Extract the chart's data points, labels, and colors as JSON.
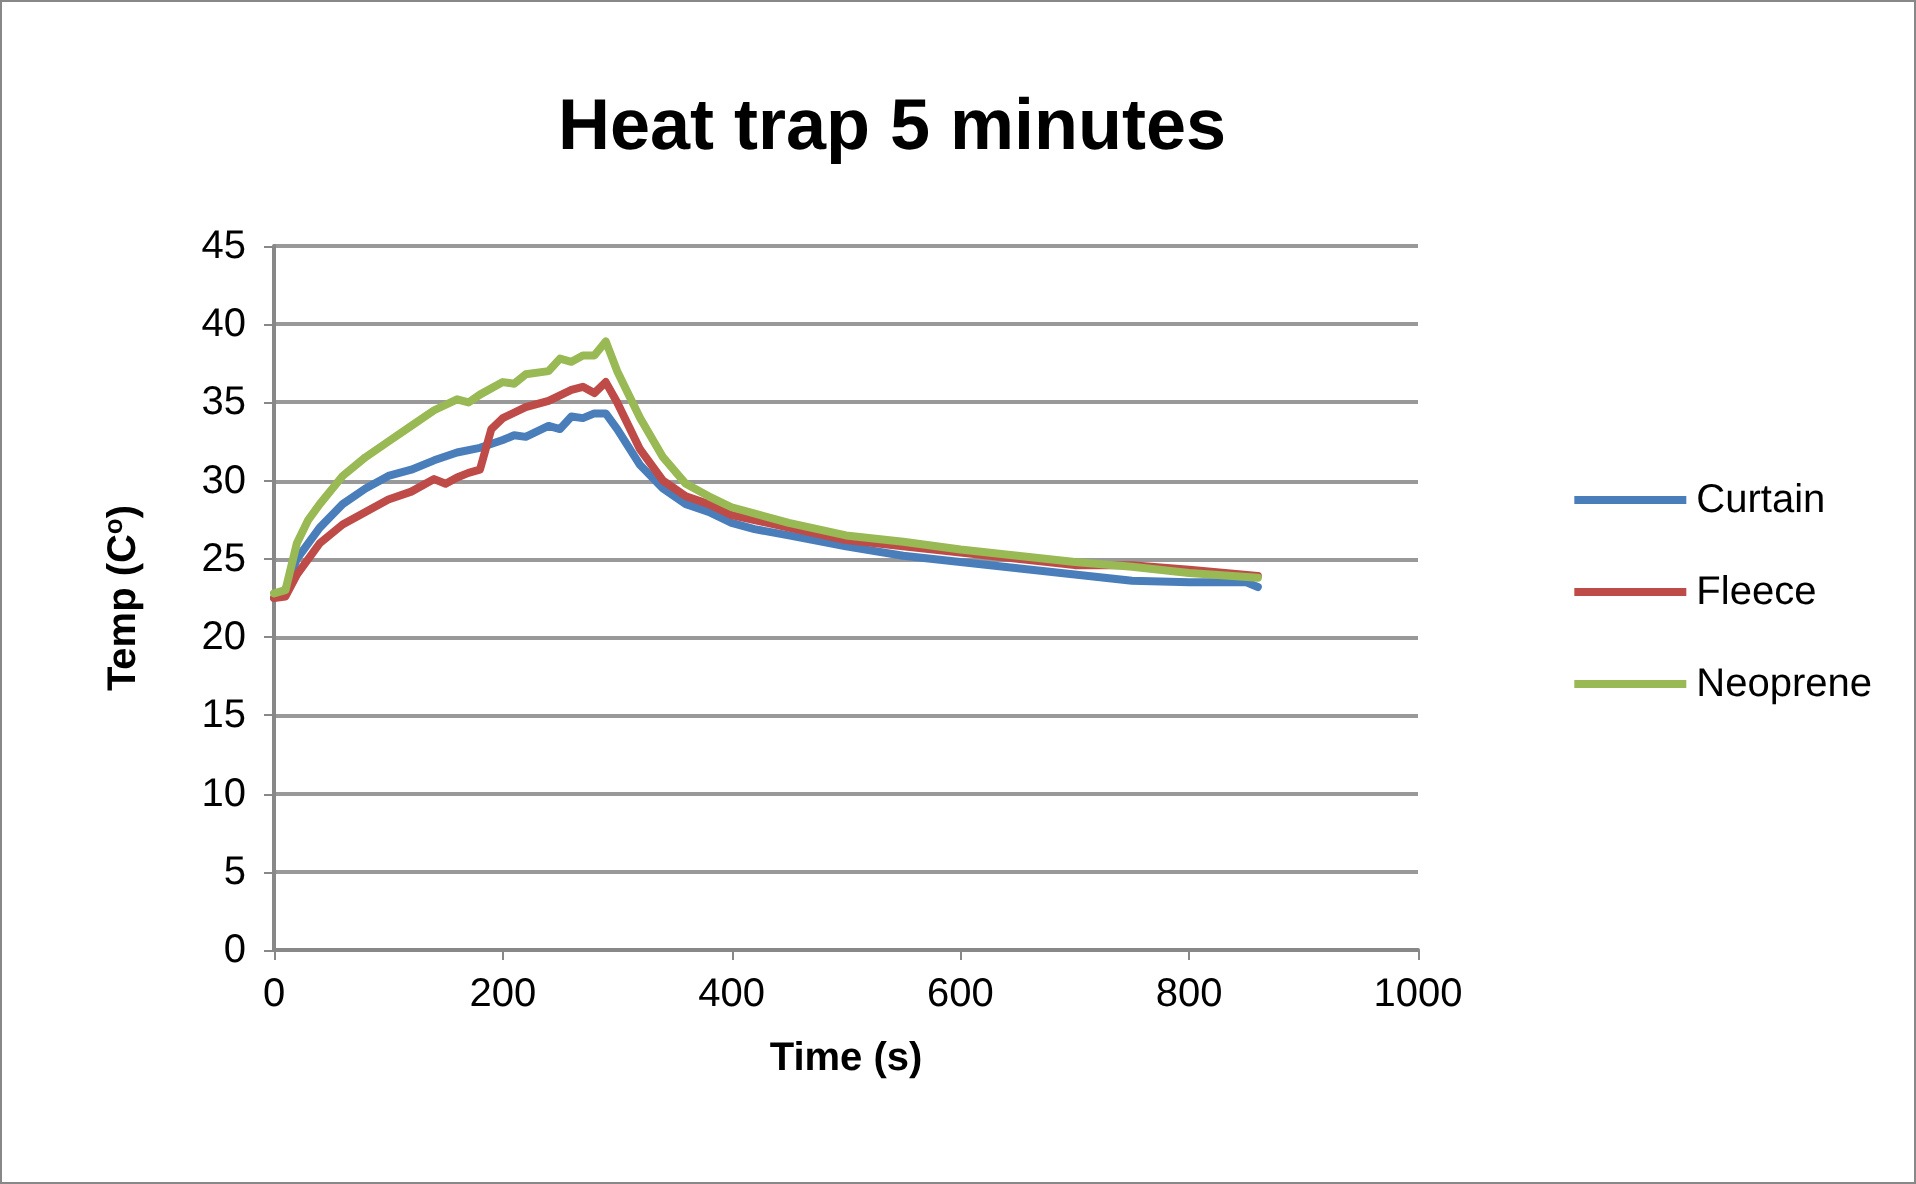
{
  "chart_data": {
    "type": "line",
    "title": "Heat trap 5 minutes",
    "xlabel": "Time (s)",
    "ylabel": "Temp (C$^{o}$)",
    "xlim": [
      0,
      1000
    ],
    "xticks": [
      0,
      200,
      400,
      600,
      800,
      1000
    ],
    "ylim": [
      0,
      45
    ],
    "yticks": [
      0,
      5,
      10,
      15,
      20,
      25,
      30,
      35,
      40,
      45
    ],
    "grid": "y",
    "legend": "right",
    "marker": "none",
    "line_style": "solid",
    "series": [
      {
        "name": "Curtain",
        "color": "#4a7ebb",
        "x": [
          0,
          10,
          20,
          40,
          60,
          80,
          100,
          120,
          140,
          160,
          180,
          200,
          210,
          220,
          240,
          250,
          260,
          270,
          280,
          290,
          300,
          320,
          340,
          360,
          380,
          400,
          420,
          450,
          500,
          550,
          600,
          650,
          700,
          750,
          800,
          850,
          860
        ],
        "values": [
          22.5,
          23,
          25,
          27,
          28.5,
          29.5,
          30.3,
          30.7,
          31.3,
          31.8,
          32.1,
          32.6,
          32.9,
          32.8,
          33.5,
          33.3,
          34.1,
          34,
          34.3,
          34.3,
          33.3,
          31,
          29.5,
          28.5,
          28,
          27.3,
          26.9,
          26.5,
          25.8,
          25.2,
          24.8,
          24.4,
          24,
          23.6,
          23.5,
          23.5,
          23.2
        ]
      },
      {
        "name": "Fleece",
        "color": "#be4b48",
        "x": [
          0,
          10,
          20,
          40,
          60,
          80,
          100,
          120,
          140,
          150,
          160,
          170,
          180,
          190,
          200,
          220,
          240,
          260,
          270,
          280,
          290,
          300,
          320,
          340,
          360,
          380,
          400,
          450,
          500,
          550,
          600,
          650,
          700,
          750,
          800,
          860
        ],
        "values": [
          22.5,
          22.6,
          24,
          26,
          27.2,
          28,
          28.8,
          29.3,
          30.1,
          29.8,
          30.2,
          30.5,
          30.7,
          33.3,
          34,
          34.7,
          35.1,
          35.8,
          36,
          35.6,
          36.3,
          35,
          32,
          30,
          29,
          28.5,
          27.8,
          27,
          26.2,
          25.8,
          25.4,
          25,
          24.6,
          24.6,
          24.3,
          23.9
        ]
      },
      {
        "name": "Neoprene",
        "color": "#98b954",
        "x": [
          0,
          10,
          20,
          30,
          40,
          60,
          80,
          100,
          120,
          140,
          160,
          170,
          180,
          200,
          210,
          220,
          240,
          250,
          260,
          270,
          280,
          290,
          300,
          320,
          340,
          360,
          380,
          400,
          450,
          500,
          550,
          600,
          650,
          700,
          750,
          800,
          860
        ],
        "values": [
          22.8,
          23,
          26,
          27.5,
          28.5,
          30.3,
          31.5,
          32.5,
          33.5,
          34.5,
          35.2,
          35,
          35.5,
          36.3,
          36.2,
          36.8,
          37,
          37.8,
          37.6,
          38,
          38,
          38.9,
          37,
          34,
          31.5,
          29.8,
          29,
          28.3,
          27.3,
          26.5,
          26.1,
          25.6,
          25.2,
          24.8,
          24.5,
          24.1,
          23.8
        ]
      }
    ]
  }
}
